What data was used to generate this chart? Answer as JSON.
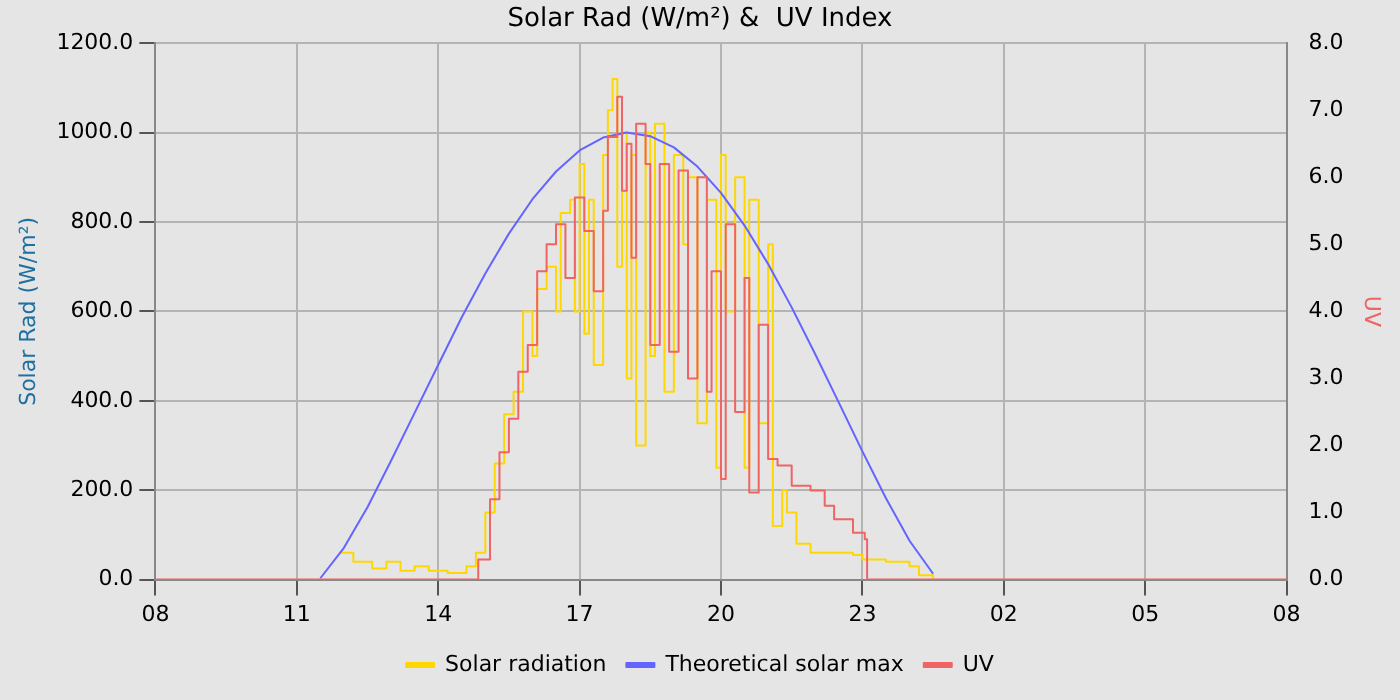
{
  "chart_data": {
    "type": "line",
    "title": "Solar Rad (W/m²) &  UV Index",
    "ylabel": "Solar Rad (W/m²)",
    "y2label": "UV",
    "xlim": [
      "--01-01T08:00",
      "--01-02T08:00"
    ],
    "xticks": [
      {
        "value": "--01-01T08:00",
        "label": "08"
      },
      {
        "value": "--01-01T11:00",
        "label": "11"
      },
      {
        "value": "--01-01T14:00",
        "label": "14"
      },
      {
        "value": "--01-01T17:00",
        "label": "17"
      },
      {
        "value": "--01-01T20:00",
        "label": "20"
      },
      {
        "value": "--01-01T23:00",
        "label": "23"
      },
      {
        "value": "--01-02T02:00",
        "label": "02"
      },
      {
        "value": "--01-02T05:00",
        "label": "05"
      },
      {
        "value": "--01-02T08:00",
        "label": "08"
      }
    ],
    "ylim": [
      0,
      1200
    ],
    "yticks": [
      {
        "value": 0,
        "label": "0.0"
      },
      {
        "value": 200,
        "label": "200.0"
      },
      {
        "value": 400,
        "label": "400.0"
      },
      {
        "value": 600,
        "label": "600.0"
      },
      {
        "value": 800,
        "label": "800.0"
      },
      {
        "value": 1000,
        "label": "1000.0"
      },
      {
        "value": 1200,
        "label": "1200.0"
      }
    ],
    "y2lim": [
      0,
      8
    ],
    "y2ticks": [
      {
        "value": 0,
        "label": "0.0"
      },
      {
        "value": 1,
        "label": "1.0"
      },
      {
        "value": 2,
        "label": "2.0"
      },
      {
        "value": 3,
        "label": "3.0"
      },
      {
        "value": 4,
        "label": "4.0"
      },
      {
        "value": 5,
        "label": "5.0"
      },
      {
        "value": 6,
        "label": "6.0"
      },
      {
        "value": 7,
        "label": "7.0"
      },
      {
        "value": 8,
        "label": "8.0"
      }
    ],
    "grid": true,
    "legend": "bottom",
    "series": [
      {
        "name": "Solar radiation",
        "type": "step",
        "color": "#ffd700",
        "x": [
          "--01-01T11:54",
          "--01-01T12:12",
          "--01-01T12:36",
          "--01-01T12:54",
          "--01-01T13:12",
          "--01-01T13:30",
          "--01-01T13:48",
          "--01-01T14:12",
          "--01-01T14:36",
          "--01-01T14:48",
          "--01-01T15:00",
          "--01-01T15:12",
          "--01-01T15:24",
          "--01-01T15:36",
          "--01-01T15:48",
          "--01-01T16:00",
          "--01-01T16:06",
          "--01-01T16:18",
          "--01-01T16:30",
          "--01-01T16:36",
          "--01-01T16:48",
          "--01-01T16:54",
          "--01-01T17:00",
          "--01-01T17:06",
          "--01-01T17:12",
          "--01-01T17:18",
          "--01-01T17:30",
          "--01-01T17:36",
          "--01-01T17:42",
          "--01-01T17:48",
          "--01-01T17:54",
          "--01-01T18:00",
          "--01-01T18:06",
          "--01-01T18:12",
          "--01-01T18:24",
          "--01-01T18:30",
          "--01-01T18:36",
          "--01-01T18:48",
          "--01-01T19:00",
          "--01-01T19:12",
          "--01-01T19:18",
          "--01-01T19:30",
          "--01-01T19:42",
          "--01-01T19:54",
          "--01-01T20:00",
          "--01-01T20:06",
          "--01-01T20:18",
          "--01-01T20:30",
          "--01-01T20:36",
          "--01-01T20:48",
          "--01-01T21:00",
          "--01-01T21:06",
          "--01-01T21:18",
          "--01-01T21:24",
          "--01-01T21:36",
          "--01-01T21:54",
          "--01-01T22:12",
          "--01-01T22:48",
          "--01-01T23:00",
          "--01-01T23:30",
          "--01-02T00:00",
          "--01-02T00:12",
          "--01-02T00:30"
        ],
        "values": [
          60,
          40,
          25,
          40,
          20,
          30,
          20,
          15,
          30,
          60,
          150,
          260,
          370,
          420,
          600,
          500,
          650,
          700,
          600,
          820,
          850,
          600,
          930,
          550,
          850,
          480,
          950,
          1050,
          1120,
          700,
          1000,
          450,
          950,
          300,
          1000,
          500,
          1020,
          420,
          950,
          750,
          900,
          350,
          850,
          250,
          950,
          600,
          900,
          250,
          850,
          350,
          750,
          120,
          200,
          150,
          80,
          60,
          60,
          55,
          45,
          40,
          30,
          10,
          0
        ]
      },
      {
        "name": "Theoretical solar max",
        "color": "#6464ff",
        "x": [
          "--01-01T11:30",
          "--01-01T12:00",
          "--01-01T12:30",
          "--01-01T13:00",
          "--01-01T13:30",
          "--01-01T14:00",
          "--01-01T14:30",
          "--01-01T15:00",
          "--01-01T15:30",
          "--01-01T16:00",
          "--01-01T16:30",
          "--01-01T17:00",
          "--01-01T17:30",
          "--01-01T18:00",
          "--01-01T18:30",
          "--01-01T19:00",
          "--01-01T19:30",
          "--01-01T20:00",
          "--01-01T20:30",
          "--01-01T21:00",
          "--01-01T21:30",
          "--01-01T22:00",
          "--01-01T22:30",
          "--01-01T23:00",
          "--01-01T23:30",
          "--01-02T00:00",
          "--01-02T00:30"
        ],
        "values": [
          3,
          71,
          162,
          266,
          373,
          480,
          587,
          685,
          774,
          851,
          913,
          960,
          989,
          1000,
          992,
          967,
          924,
          865,
          792,
          706,
          609,
          504,
          396,
          287,
          182,
          87,
          13
        ]
      },
      {
        "name": "UV",
        "type": "step",
        "axis": "y2",
        "color": "#f06464",
        "x": [
          "--01-01T08:00",
          "--01-01T14:48",
          "--01-01T14:51",
          "--01-01T15:06",
          "--01-01T15:18",
          "--01-01T15:30",
          "--01-01T15:42",
          "--01-01T15:54",
          "--01-01T16:06",
          "--01-01T16:18",
          "--01-01T16:30",
          "--01-01T16:42",
          "--01-01T16:54",
          "--01-01T17:06",
          "--01-01T17:18",
          "--01-01T17:30",
          "--01-01T17:36",
          "--01-01T17:48",
          "--01-01T17:54",
          "--01-01T18:00",
          "--01-01T18:06",
          "--01-01T18:12",
          "--01-01T18:24",
          "--01-01T18:30",
          "--01-01T18:42",
          "--01-01T18:54",
          "--01-01T19:06",
          "--01-01T19:18",
          "--01-01T19:30",
          "--01-01T19:42",
          "--01-01T19:48",
          "--01-01T20:00",
          "--01-01T20:06",
          "--01-01T20:18",
          "--01-01T20:30",
          "--01-01T20:36",
          "--01-01T20:48",
          "--01-01T21:00",
          "--01-01T21:12",
          "--01-01T21:30",
          "--01-01T21:54",
          "--01-01T22:12",
          "--01-01T22:24",
          "--01-01T22:48",
          "--01-01T23:03",
          "--01-01T23:06",
          "--01-02T08:00"
        ],
        "values": [
          0,
          0,
          0.3,
          1.2,
          1.9,
          2.4,
          3.1,
          3.5,
          4.6,
          5.0,
          5.3,
          4.5,
          5.7,
          5.2,
          4.3,
          5.5,
          6.6,
          7.2,
          5.8,
          6.5,
          4.8,
          6.8,
          6.2,
          3.5,
          6.2,
          3.4,
          6.1,
          3.0,
          6.0,
          2.8,
          4.6,
          1.5,
          5.3,
          2.5,
          4.5,
          1.3,
          3.8,
          1.8,
          1.7,
          1.4,
          1.33,
          1.1,
          0.9,
          0.7,
          0.6,
          0,
          0
        ]
      }
    ]
  }
}
